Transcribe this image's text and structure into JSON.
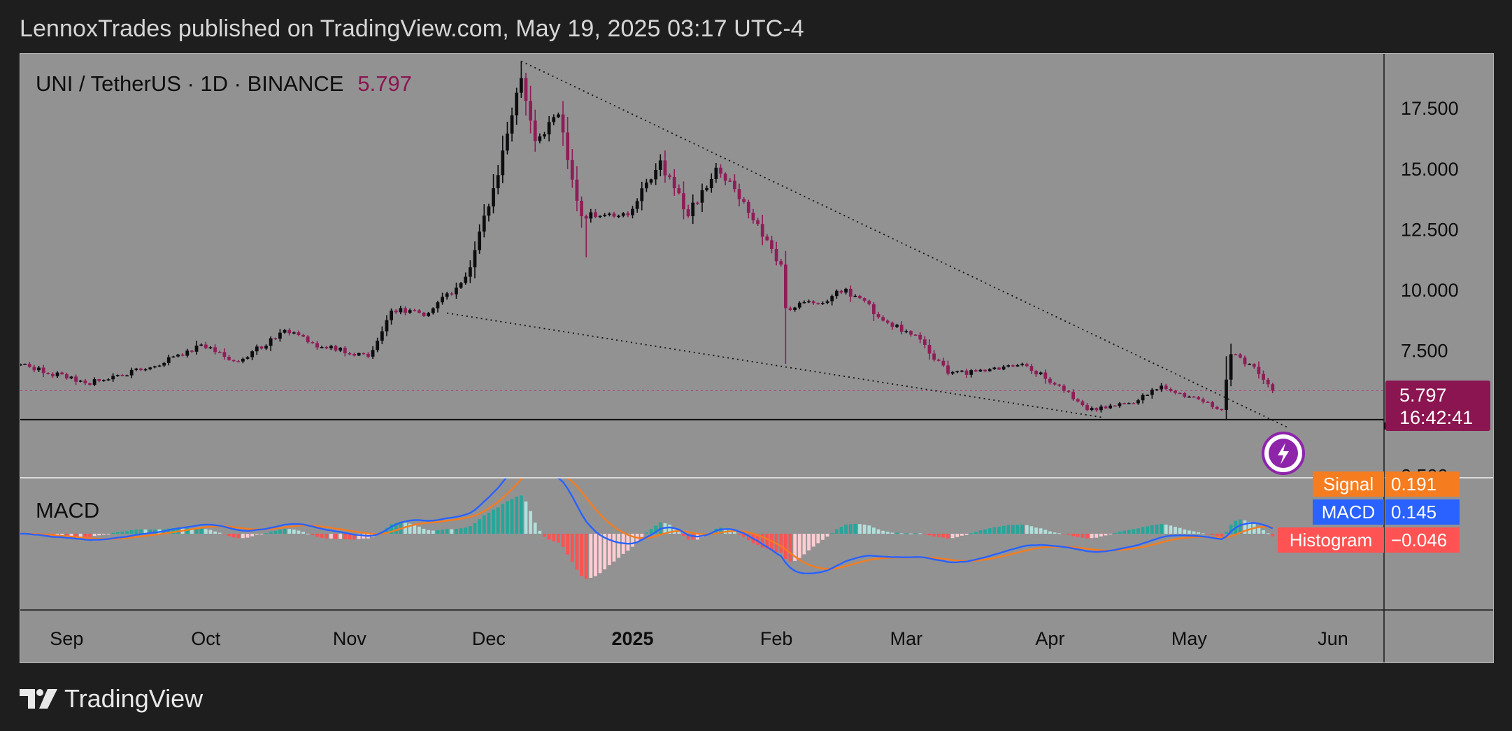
{
  "header": {
    "publish_line": "LennoxTrades published on TradingView.com, May 19, 2025 03:17 UTC-4"
  },
  "footer": {
    "brand": "TradingView"
  },
  "colors": {
    "background": "#1e1e1e",
    "chart_bg": "#929293",
    "up_candle": "#0d0d0f",
    "down_candle": "#8f1d57",
    "price_label_bg": "#8a1550",
    "macd_line": "#2962ff",
    "signal_line": "#f57c1f",
    "hist_pos_strong": "#26a69a",
    "hist_pos_weak": "#b2dfdb",
    "hist_neg_strong": "#ff5252",
    "hist_neg_weak": "#ffcdd2"
  },
  "chart_data": [
    {
      "type": "candlestick",
      "title": "UNI / TetherUS · 1D · BINANCE",
      "last_price": "5.797",
      "countdown": "16:42:41",
      "yaxis_ticks": [
        "17.500",
        "15.000",
        "12.500",
        "10.000",
        "7.500",
        "2.500"
      ],
      "ylim": [
        2.2,
        19.7
      ],
      "xaxis_ticks": [
        "Sep",
        "Oct",
        "Nov",
        "Dec",
        "2025",
        "Feb",
        "Mar",
        "Apr",
        "May",
        "Jun"
      ],
      "x_range": [
        "2024-08-22",
        "2025-06-12"
      ],
      "support_level": 4.6,
      "trendlines": [
        {
          "from": [
            "2024-12-08",
            19.4
          ],
          "to": [
            "2025-05-22",
            4.3
          ],
          "style": "dotted"
        },
        {
          "from": [
            "2024-11-22",
            9.0
          ],
          "to": [
            "2025-04-12",
            4.7
          ],
          "style": "dotted"
        }
      ],
      "anchors": [
        {
          "date": "2024-08-22",
          "close": 6.9
        },
        {
          "date": "2024-09-05",
          "close": 6.1
        },
        {
          "date": "2024-09-20",
          "close": 6.8
        },
        {
          "date": "2024-09-30",
          "close": 7.7
        },
        {
          "date": "2024-10-08",
          "close": 7.0
        },
        {
          "date": "2024-10-18",
          "close": 8.3
        },
        {
          "date": "2024-10-26",
          "close": 7.6
        },
        {
          "date": "2024-11-05",
          "close": 7.2
        },
        {
          "date": "2024-11-10",
          "close": 9.1
        },
        {
          "date": "2024-11-18",
          "close": 9.0
        },
        {
          "date": "2024-11-26",
          "close": 10.5
        },
        {
          "date": "2024-12-01",
          "close": 13.4
        },
        {
          "date": "2024-12-08",
          "close": 18.7
        },
        {
          "date": "2024-12-11",
          "close": 16.1
        },
        {
          "date": "2024-12-16",
          "close": 17.2
        },
        {
          "date": "2024-12-21",
          "close": 13.0
        },
        {
          "date": "2025-01-01",
          "close": 13.3
        },
        {
          "date": "2025-01-07",
          "close": 15.3
        },
        {
          "date": "2025-01-13",
          "close": 13.0
        },
        {
          "date": "2025-01-19",
          "close": 15.0
        },
        {
          "date": "2025-01-24",
          "close": 13.7
        },
        {
          "date": "2025-02-02",
          "close": 11.0
        },
        {
          "date": "2025-02-03",
          "close": 9.2
        },
        {
          "date": "2025-02-10",
          "close": 9.4
        },
        {
          "date": "2025-02-16",
          "close": 10.0
        },
        {
          "date": "2025-02-25",
          "close": 8.6
        },
        {
          "date": "2025-03-03",
          "close": 8.1
        },
        {
          "date": "2025-03-10",
          "close": 6.5
        },
        {
          "date": "2025-03-18",
          "close": 6.6
        },
        {
          "date": "2025-03-26",
          "close": 6.9
        },
        {
          "date": "2025-04-03",
          "close": 6.0
        },
        {
          "date": "2025-04-09",
          "close": 5.0
        },
        {
          "date": "2025-04-20",
          "close": 5.4
        },
        {
          "date": "2025-04-25",
          "close": 6.0
        },
        {
          "date": "2025-05-08",
          "close": 5.0
        },
        {
          "date": "2025-05-10",
          "close": 7.3
        },
        {
          "date": "2025-05-14",
          "close": 6.9
        },
        {
          "date": "2025-05-19",
          "close": 5.797
        }
      ]
    },
    {
      "type": "macd",
      "title": "MACD",
      "legend": [
        {
          "name": "Signal",
          "value": "0.191"
        },
        {
          "name": "MACD",
          "value": "0.145"
        },
        {
          "name": "Histogram",
          "value": "−0.046"
        }
      ]
    }
  ]
}
